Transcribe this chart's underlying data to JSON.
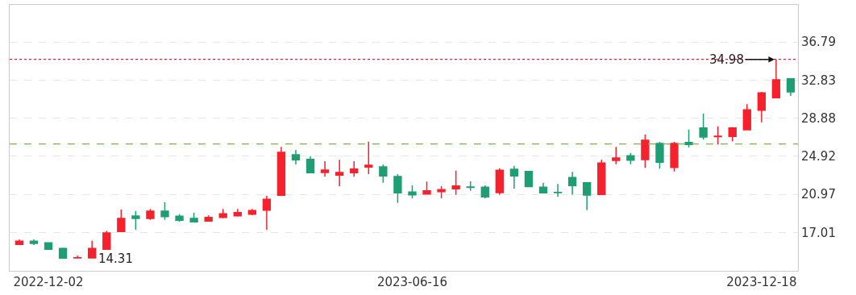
{
  "chart_data": {
    "type": "candlestick",
    "categories": [
      null,
      null,
      "2022-12-02",
      null,
      null,
      null,
      null,
      null,
      null,
      null,
      null,
      null,
      null,
      null,
      null,
      null,
      null,
      null,
      null,
      null,
      null,
      null,
      null,
      null,
      null,
      null,
      null,
      "2023-06-16",
      null,
      null,
      null,
      null,
      null,
      null,
      null,
      null,
      null,
      null,
      null,
      null,
      null,
      null,
      null,
      null,
      null,
      null,
      null,
      null,
      null,
      null,
      null,
      "2023-12-18",
      null,
      null
    ],
    "ohlc": [
      [
        15.78,
        16.3,
        15.78,
        16.11
      ],
      [
        16.11,
        16.3,
        15.72,
        15.89
      ],
      [
        15.95,
        15.95,
        15.28,
        15.28
      ],
      [
        15.36,
        15.44,
        14.35,
        14.35
      ],
      [
        14.4,
        14.61,
        14.31,
        14.38
      ],
      [
        14.38,
        16.16,
        14.38,
        15.36
      ],
      [
        15.28,
        17.17,
        15.28,
        16.97
      ],
      [
        17.12,
        19.4,
        17.12,
        18.48
      ],
      [
        18.73,
        19.26,
        17.31,
        18.48
      ],
      [
        18.48,
        19.46,
        18.34,
        19.23
      ],
      [
        19.23,
        20.15,
        18.34,
        18.67
      ],
      [
        18.71,
        18.92,
        18.15,
        18.29
      ],
      [
        18.48,
        19.07,
        18.12,
        18.12
      ],
      [
        18.2,
        18.79,
        18.2,
        18.59
      ],
      [
        18.59,
        19.46,
        18.5,
        18.96
      ],
      [
        18.75,
        19.46,
        18.67,
        19.09
      ],
      [
        18.92,
        19.46,
        18.81,
        19.29
      ],
      [
        19.34,
        20.82,
        17.31,
        20.46
      ],
      [
        20.88,
        25.9,
        20.88,
        25.34
      ],
      [
        25.08,
        25.59,
        24.08,
        24.56
      ],
      [
        24.61,
        24.92,
        23.22,
        23.22
      ],
      [
        23.24,
        24.42,
        22.83,
        23.5
      ],
      [
        22.97,
        24.56,
        21.82,
        23.24
      ],
      [
        23.22,
        24.42,
        22.83,
        23.6
      ],
      [
        23.8,
        26.45,
        23.08,
        24.0
      ],
      [
        23.83,
        24.08,
        22.18,
        22.89
      ],
      [
        22.83,
        23.08,
        20.09,
        21.13
      ],
      [
        21.21,
        21.91,
        20.57,
        20.93
      ],
      [
        21.01,
        22.3,
        20.99,
        21.35
      ],
      [
        21.26,
        21.82,
        20.57,
        21.46
      ],
      [
        21.55,
        23.44,
        20.93,
        21.85
      ],
      [
        21.73,
        22.32,
        21.35,
        21.7
      ],
      [
        21.72,
        21.91,
        20.57,
        20.71
      ],
      [
        21.16,
        23.69,
        20.93,
        23.47
      ],
      [
        23.58,
        23.94,
        21.57,
        22.89
      ],
      [
        23.35,
        23.35,
        21.77,
        21.77
      ],
      [
        21.72,
        22.18,
        21.13,
        21.13
      ],
      [
        21.17,
        22.05,
        20.74,
        21.15
      ],
      [
        22.72,
        23.3,
        20.93,
        21.88
      ],
      [
        22.18,
        22.18,
        19.34,
        20.9
      ],
      [
        20.96,
        24.56,
        20.96,
        24.22
      ],
      [
        24.5,
        25.9,
        24.11,
        24.75
      ],
      [
        24.98,
        25.28,
        24.11,
        24.52
      ],
      [
        24.58,
        27.17,
        23.72,
        26.59
      ],
      [
        26.26,
        26.42,
        23.64,
        24.31
      ],
      [
        23.77,
        26.42,
        23.35,
        26.26
      ],
      [
        26.36,
        27.7,
        25.86,
        26.15
      ],
      [
        27.87,
        29.35,
        26.65,
        26.92
      ],
      [
        26.97,
        28.03,
        26.15,
        27.0
      ],
      [
        26.98,
        27.95,
        26.48,
        27.87
      ],
      [
        27.68,
        30.33,
        27.68,
        29.74
      ],
      [
        29.71,
        31.61,
        28.45,
        31.5
      ],
      [
        31.0,
        34.98,
        31.0,
        32.86
      ],
      [
        32.97,
        32.97,
        31.19,
        31.61
      ]
    ],
    "colors": [
      "#f5222d",
      "#1f9e74",
      "#1f9e74",
      "#1f9e74",
      "#f5222d",
      "#f5222d",
      "#f5222d",
      "#f5222d",
      "#1f9e74",
      "#f5222d",
      "#1f9e74",
      "#1f9e74",
      "#1f9e74",
      "#f5222d",
      "#f5222d",
      "#f5222d",
      "#f5222d",
      "#f5222d",
      "#f5222d",
      "#1f9e74",
      "#1f9e74",
      "#f5222d",
      "#f5222d",
      "#f5222d",
      "#f5222d",
      "#1f9e74",
      "#1f9e74",
      "#1f9e74",
      "#f5222d",
      "#f5222d",
      "#f5222d",
      "#1f9e74",
      "#1f9e74",
      "#f5222d",
      "#1f9e74",
      "#1f9e74",
      "#1f9e74",
      "#1f9e74",
      "#1f9e74",
      "#1f9e74",
      "#f5222d",
      "#f5222d",
      "#1f9e74",
      "#f5222d",
      "#1f9e74",
      "#f5222d",
      "#1f9e74",
      "#1f9e74",
      "#f5222d",
      "#f5222d",
      "#f5222d",
      "#f5222d",
      "#f5222d",
      "#1f9e74"
    ],
    "ylim": [
      13.04,
      40.64
    ],
    "yticks": [
      17.01,
      20.97,
      24.92,
      28.88,
      32.83,
      36.79
    ],
    "grid": "y",
    "ref_lines": [
      {
        "axis": "y",
        "value": 34.98,
        "color": "#e0263a",
        "line_style": "dotted"
      },
      {
        "axis": "y",
        "value": 26.2,
        "color": "#7cb342",
        "line_style": "dashed"
      }
    ],
    "annotations": [
      {
        "text": "34.98",
        "y": 34.98
      },
      "14.31"
    ]
  }
}
